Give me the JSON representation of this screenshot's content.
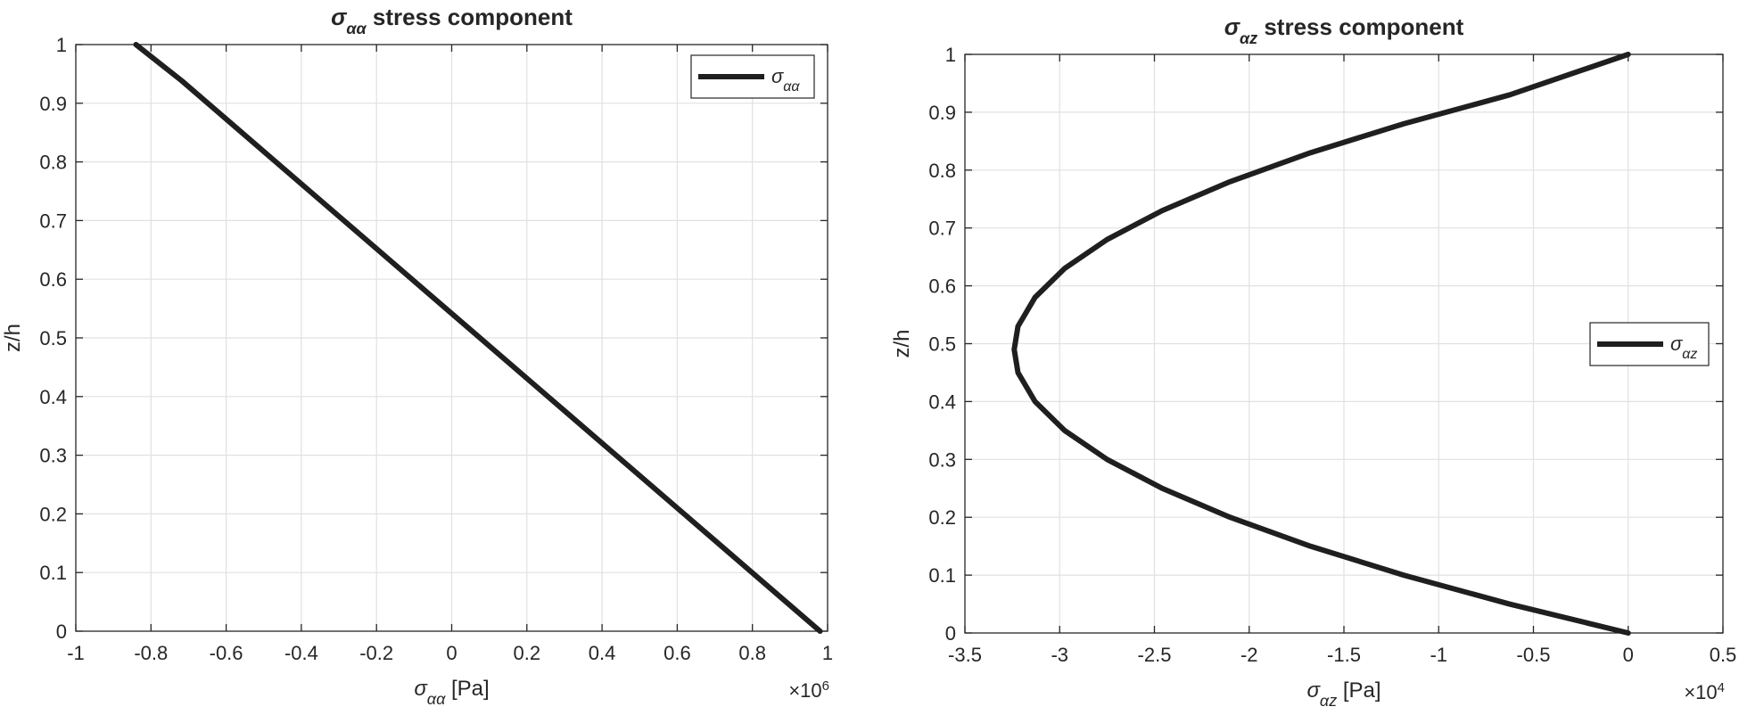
{
  "chart_data": [
    {
      "type": "line",
      "title": "σαα stress component",
      "title_parts": {
        "symbol": "σ",
        "sub": "αα",
        "rest": " stress component"
      },
      "xlabel_parts": {
        "symbol": "σ",
        "sub": "αα",
        "rest": " [Pa]"
      },
      "ylabel": "z/h",
      "xlim": [
        -1,
        1
      ],
      "ylim": [
        0,
        1
      ],
      "x_scale_label": "×10",
      "x_scale_exp": "6",
      "x_multiplier": 1000000,
      "xticks": [
        -1,
        -0.8,
        -0.6,
        -0.4,
        -0.2,
        0,
        0.2,
        0.4,
        0.6,
        0.8,
        1
      ],
      "xtick_labels": [
        "-1",
        "-0.8",
        "-0.6",
        "-0.4",
        "-0.2",
        "0",
        "0.2",
        "0.4",
        "0.6",
        "0.8",
        "1"
      ],
      "yticks": [
        0,
        0.1,
        0.2,
        0.3,
        0.4,
        0.5,
        0.6,
        0.7,
        0.8,
        0.9,
        1
      ],
      "ytick_labels": [
        "0",
        "0.1",
        "0.2",
        "0.3",
        "0.4",
        "0.5",
        "0.6",
        "0.7",
        "0.8",
        "0.9",
        "1"
      ],
      "grid": true,
      "legend": {
        "position": "top-right",
        "symbol": "σ",
        "sub": "αα"
      },
      "series": [
        {
          "label_symbol": "σ",
          "label_sub": "αα",
          "color": "#1f1f1f",
          "x": [
            0.98,
            0.7375,
            0.495,
            0.2525,
            0.01,
            -0.2325,
            -0.475,
            -0.7175,
            -0.84
          ],
          "y": [
            0,
            0.134,
            0.268,
            0.402,
            0.536,
            0.67,
            0.804,
            0.938,
            1.0
          ]
        }
      ]
    },
    {
      "type": "line",
      "title": "σαz stress component",
      "title_parts": {
        "symbol": "σ",
        "sub": "αz",
        "rest": " stress component"
      },
      "xlabel_parts": {
        "symbol": "σ",
        "sub": "αz",
        "rest": " [Pa]"
      },
      "ylabel": "z/h",
      "xlim": [
        -3.5,
        0.5
      ],
      "ylim": [
        0,
        1
      ],
      "x_scale_label": "×10",
      "x_scale_exp": "4",
      "x_multiplier": 10000,
      "xticks": [
        -3.5,
        -3,
        -2.5,
        -2,
        -1.5,
        -1,
        -0.5,
        0,
        0.5
      ],
      "xtick_labels": [
        "-3.5",
        "-3",
        "-2.5",
        "-2",
        "-1.5",
        "-1",
        "-0.5",
        "0",
        "0.5"
      ],
      "yticks": [
        0,
        0.1,
        0.2,
        0.3,
        0.4,
        0.5,
        0.6,
        0.7,
        0.8,
        0.9,
        1
      ],
      "ytick_labels": [
        "0",
        "0.1",
        "0.2",
        "0.3",
        "0.4",
        "0.5",
        "0.6",
        "0.7",
        "0.8",
        "0.9",
        "1"
      ],
      "grid": true,
      "legend": {
        "position": "right",
        "symbol": "σ",
        "sub": "αz"
      },
      "series": [
        {
          "label_symbol": "σ",
          "label_sub": "αz",
          "color": "#1f1f1f",
          "x": [
            0,
            -0.626,
            -1.185,
            -1.677,
            -2.101,
            -2.459,
            -2.75,
            -2.974,
            -3.13,
            -3.22,
            -3.24,
            -3.22,
            -3.13,
            -2.974,
            -2.75,
            -2.459,
            -2.101,
            -1.677,
            -1.185,
            -0.626,
            0
          ],
          "y": [
            0,
            0.05,
            0.1,
            0.15,
            0.2,
            0.25,
            0.3,
            0.35,
            0.4,
            0.45,
            0.49,
            0.53,
            0.58,
            0.63,
            0.68,
            0.73,
            0.78,
            0.83,
            0.88,
            0.93,
            1.0
          ]
        }
      ]
    }
  ]
}
